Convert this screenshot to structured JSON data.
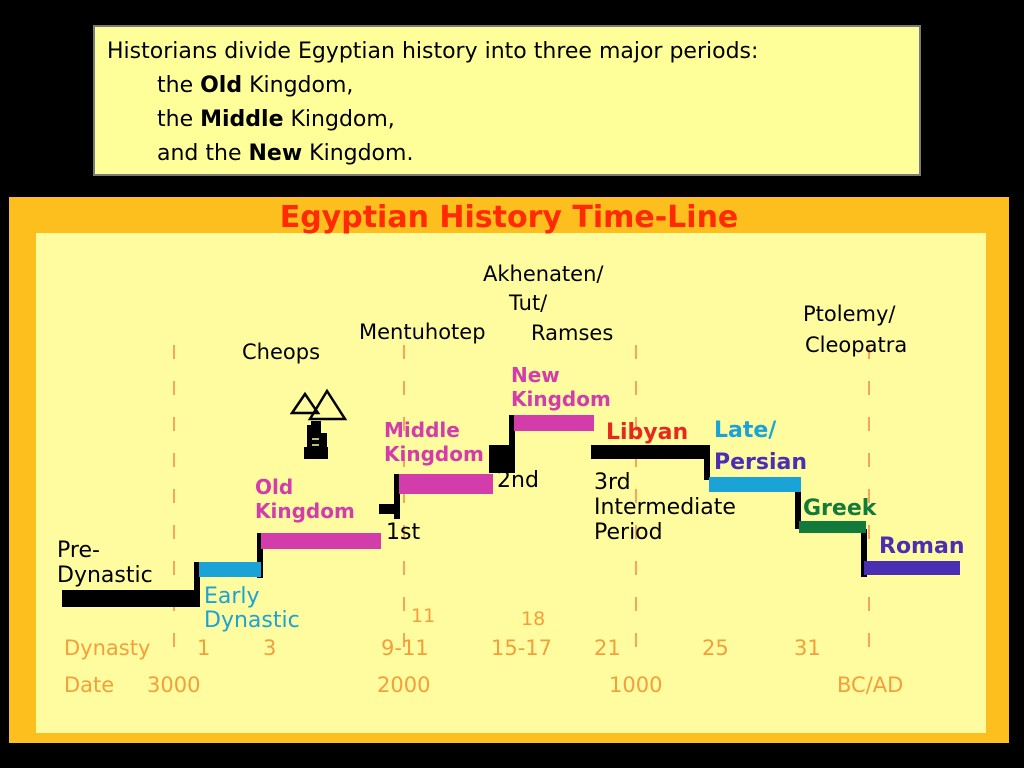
{
  "note": {
    "line1": "Historians divide Egyptian history into three major periods:",
    "line2_pre": "the ",
    "line2_bold": "Old",
    "line2_post": " Kingdom,",
    "line3_pre": "the ",
    "line3_bold": "Middle",
    "line3_post": " Kingdom,",
    "line4_pre": "and the ",
    "line4_bold": "New",
    "line4_post": " Kingdom."
  },
  "timeline": {
    "title": "Egyptian History Time-Line",
    "colors": {
      "frame": "#fdbf1e",
      "panel": "#fefc9e",
      "title": "#ff2a00",
      "pink": "#d33cab",
      "blue": "#1aa3d6",
      "red": "#e8281c",
      "green": "#127a3b",
      "purple": "#4a2fb5",
      "orange_text": "#f3a03c",
      "black": "#000000"
    },
    "figures": {
      "cheops": "Cheops",
      "mentuhotep": "Mentuhotep",
      "akhenaten_1": "Akhenaten/",
      "akhenaten_2": "Tut/",
      "akhenaten_3": "Ramses",
      "ptolemy_1": "Ptolemy/",
      "ptolemy_2": "Cleopatra"
    },
    "periods": {
      "predynastic_1": "Pre-",
      "predynastic_2": "Dynastic",
      "early_1": "Early",
      "early_2": "Dynastic",
      "old_1": "Old",
      "old_2": "Kingdom",
      "first": "1st",
      "middle_1": "Middle",
      "middle_2": "Kingdom",
      "second": "2nd",
      "new_1": "New",
      "new_2": "Kingdom",
      "libyan": "Libyan",
      "third_1": "3rd",
      "third_2": "Intermediate",
      "third_3": "Period",
      "late_1": "Late/",
      "late_2": "Persian",
      "greek": "Greek",
      "roman": "Roman"
    },
    "above_dynasty": {
      "d11": "11",
      "d18": "18"
    },
    "dynasty_row": {
      "label": "Dynasty",
      "values": [
        "1",
        "3",
        "9-11",
        "15-17",
        "21",
        "25",
        "31"
      ]
    },
    "date_row": {
      "label": "Date",
      "values": [
        "3000",
        "2000",
        "1000",
        "BC/AD"
      ]
    }
  }
}
